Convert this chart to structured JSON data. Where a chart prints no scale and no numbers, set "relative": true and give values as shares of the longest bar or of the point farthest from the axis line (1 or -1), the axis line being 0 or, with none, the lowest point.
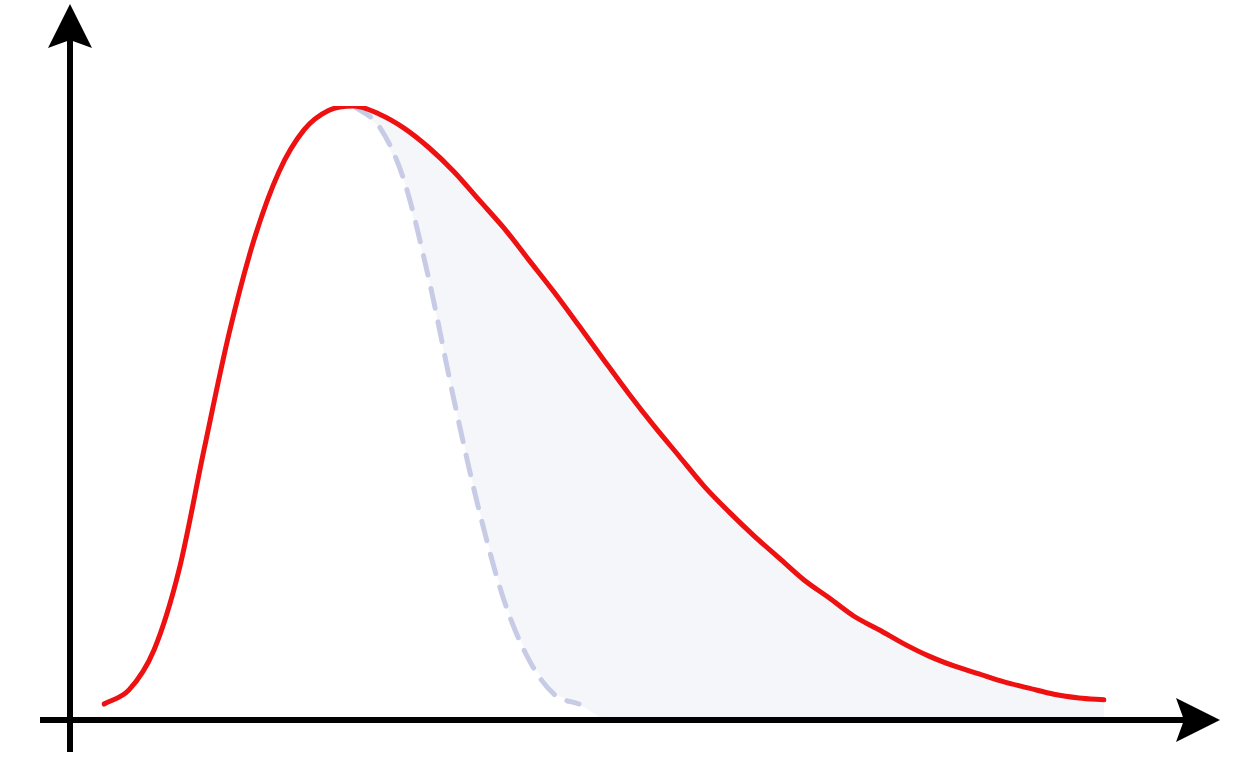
{
  "chart_data": {
    "type": "line",
    "relative": true,
    "categories": [
      null,
      null,
      null,
      null,
      null,
      null,
      null,
      null,
      null,
      null,
      null,
      null,
      null,
      null,
      null,
      null,
      null,
      null,
      null,
      null,
      null,
      null,
      null,
      null,
      null,
      null,
      null,
      null,
      null,
      null,
      null,
      null,
      null,
      null,
      null,
      null,
      null,
      null,
      null,
      null,
      null
    ],
    "series": [
      {
        "color": "#ee1111",
        "line_style": "solid",
        "values": [
          0.026,
          0.049,
          0.114,
          0.244,
          0.44,
          0.629,
          0.782,
          0.893,
          0.961,
          0.993,
          1.0,
          0.987,
          0.964,
          0.932,
          0.893,
          0.847,
          0.801,
          0.749,
          0.697,
          0.642,
          0.586,
          0.531,
          0.479,
          0.43,
          0.381,
          0.339,
          0.3,
          0.264,
          0.228,
          0.199,
          0.169,
          0.147,
          0.124,
          0.104,
          0.088,
          0.075,
          0.062,
          0.052,
          0.042,
          0.036,
          0.033
        ]
      },
      {
        "color": "#c8cbe6",
        "line_style": "dashed",
        "values": [
          null,
          null,
          null,
          null,
          null,
          null,
          null,
          null,
          null,
          null,
          1.0,
          0.967,
          0.879,
          0.717,
          0.521,
          0.342,
          0.195,
          0.098,
          0.042,
          0.026,
          null,
          null,
          null,
          null,
          null,
          null,
          null,
          null,
          null,
          null,
          null,
          null,
          null,
          null,
          null,
          null,
          null,
          null,
          null,
          null,
          null
        ],
        "lower": [
          null,
          null,
          null,
          null,
          null,
          null,
          null,
          null,
          null,
          null,
          1.0,
          0.967,
          0.879,
          0.717,
          0.521,
          0.342,
          0.195,
          0.098,
          0.042,
          0.026,
          0,
          0,
          0,
          0,
          0,
          0,
          0,
          0,
          0,
          0,
          0,
          0,
          0,
          0,
          0,
          0,
          0,
          0,
          0,
          0,
          0
        ],
        "upper": [
          null,
          null,
          null,
          null,
          null,
          null,
          null,
          null,
          null,
          null,
          1.0,
          0.987,
          0.964,
          0.932,
          0.893,
          0.847,
          0.801,
          0.749,
          0.697,
          0.642,
          0.586,
          0.531,
          0.479,
          0.43,
          0.381,
          0.339,
          0.3,
          0.264,
          0.228,
          0.199,
          0.169,
          0.147,
          0.124,
          0.104,
          0.088,
          0.075,
          0.062,
          0.052,
          0.042,
          0.036,
          0.033
        ]
      }
    ],
    "legend": false,
    "marker": "none"
  }
}
